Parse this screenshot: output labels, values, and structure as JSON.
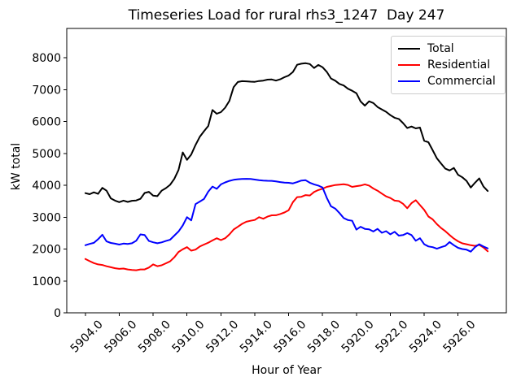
{
  "chart_data": {
    "type": "line",
    "title": "Timeseries Load for rural rhs3_1247  Day 247",
    "xlabel": "Hour of Year",
    "ylabel": "kW total",
    "grid": false,
    "legend_position": "upper right",
    "xlim": [
      5902.9,
      5928.85
    ],
    "ylim": [
      0,
      8920
    ],
    "xticks": [
      5904,
      5906,
      5908,
      5910,
      5912,
      5914,
      5916,
      5918,
      5920,
      5922,
      5924,
      5926
    ],
    "xtick_labels": [
      "5904.0",
      "5906.0",
      "5908.0",
      "5910.0",
      "5912.0",
      "5914.0",
      "5916.0",
      "5918.0",
      "5920.0",
      "5922.0",
      "5924.0",
      "5926.0"
    ],
    "yticks": [
      0,
      1000,
      2000,
      3000,
      4000,
      5000,
      6000,
      7000,
      8000
    ],
    "ytick_labels": [
      "0",
      "1000",
      "2000",
      "3000",
      "4000",
      "5000",
      "6000",
      "7000",
      "8000"
    ],
    "x": [
      5904.0,
      5904.25,
      5904.5,
      5904.75,
      5905.0,
      5905.25,
      5905.5,
      5905.75,
      5906.0,
      5906.25,
      5906.5,
      5906.75,
      5907.0,
      5907.25,
      5907.5,
      5907.75,
      5908.0,
      5908.25,
      5908.5,
      5908.75,
      5909.0,
      5909.25,
      5909.5,
      5909.75,
      5910.0,
      5910.25,
      5910.5,
      5910.75,
      5911.0,
      5911.25,
      5911.5,
      5911.75,
      5912.0,
      5912.25,
      5912.5,
      5912.75,
      5913.0,
      5913.25,
      5913.5,
      5913.75,
      5914.0,
      5914.25,
      5914.5,
      5914.75,
      5915.0,
      5915.25,
      5915.5,
      5915.75,
      5916.0,
      5916.25,
      5916.5,
      5916.75,
      5917.0,
      5917.25,
      5917.5,
      5917.75,
      5918.0,
      5918.25,
      5918.5,
      5918.75,
      5919.0,
      5919.25,
      5919.5,
      5919.75,
      5920.0,
      5920.25,
      5920.5,
      5920.75,
      5921.0,
      5921.25,
      5921.5,
      5921.75,
      5922.0,
      5922.25,
      5922.5,
      5922.75,
      5923.0,
      5923.25,
      5923.5,
      5923.75,
      5924.0,
      5924.25,
      5924.5,
      5924.75,
      5925.0,
      5925.25,
      5925.5,
      5925.75,
      5926.0,
      5926.25,
      5926.5,
      5926.75,
      5927.0,
      5927.25,
      5927.5,
      5927.75
    ],
    "series": [
      {
        "name": "Total",
        "color": "#000000",
        "values": [
          3755,
          3720,
          3780,
          3730,
          3920,
          3830,
          3590,
          3520,
          3470,
          3520,
          3480,
          3515,
          3525,
          3575,
          3760,
          3795,
          3675,
          3660,
          3830,
          3910,
          4015,
          4200,
          4480,
          5030,
          4800,
          4965,
          5265,
          5520,
          5695,
          5860,
          6360,
          6245,
          6295,
          6435,
          6650,
          7080,
          7240,
          7265,
          7260,
          7250,
          7245,
          7270,
          7285,
          7315,
          7320,
          7285,
          7325,
          7390,
          7445,
          7555,
          7780,
          7815,
          7830,
          7805,
          7680,
          7775,
          7705,
          7560,
          7350,
          7280,
          7180,
          7130,
          7030,
          6965,
          6890,
          6630,
          6500,
          6635,
          6580,
          6455,
          6380,
          6305,
          6200,
          6120,
          6080,
          5950,
          5795,
          5845,
          5785,
          5810,
          5395,
          5350,
          5100,
          4845,
          4680,
          4520,
          4465,
          4545,
          4330,
          4250,
          4140,
          3930,
          4080,
          4215,
          3960,
          3820
        ]
      },
      {
        "name": "Residential",
        "color": "#ff0000",
        "values": [
          1690,
          1620,
          1560,
          1520,
          1500,
          1460,
          1430,
          1400,
          1380,
          1388,
          1360,
          1345,
          1335,
          1360,
          1362,
          1420,
          1520,
          1462,
          1490,
          1552,
          1612,
          1740,
          1910,
          1992,
          2060,
          1950,
          1982,
          2080,
          2142,
          2200,
          2272,
          2340,
          2282,
          2340,
          2460,
          2612,
          2700,
          2790,
          2858,
          2888,
          2912,
          3000,
          2952,
          3018,
          3058,
          3062,
          3100,
          3148,
          3220,
          3470,
          3630,
          3640,
          3692,
          3680,
          3790,
          3850,
          3892,
          3950,
          3978,
          4008,
          4020,
          4032,
          4012,
          3950,
          3972,
          3990,
          4030,
          3990,
          3900,
          3830,
          3740,
          3652,
          3600,
          3520,
          3505,
          3420,
          3280,
          3440,
          3532,
          3380,
          3230,
          3020,
          2930,
          2780,
          2658,
          2560,
          2440,
          2330,
          2242,
          2180,
          2150,
          2120,
          2100,
          2130,
          2050,
          1930
        ]
      },
      {
        "name": "Commercial",
        "color": "#0000ff",
        "values": [
          2120,
          2160,
          2195,
          2310,
          2450,
          2240,
          2192,
          2170,
          2140,
          2172,
          2160,
          2182,
          2260,
          2460,
          2440,
          2252,
          2212,
          2182,
          2210,
          2252,
          2292,
          2420,
          2552,
          2740,
          3000,
          2900,
          3410,
          3490,
          3570,
          3800,
          3960,
          3890,
          4030,
          4090,
          4140,
          4172,
          4190,
          4200,
          4202,
          4200,
          4180,
          4162,
          4150,
          4142,
          4140,
          4120,
          4100,
          4082,
          4078,
          4060,
          4100,
          4150,
          4160,
          4080,
          4030,
          3990,
          3930,
          3610,
          3340,
          3270,
          3130,
          2972,
          2910,
          2888,
          2610,
          2700,
          2632,
          2620,
          2550,
          2632,
          2510,
          2562,
          2462,
          2540,
          2420,
          2440,
          2500,
          2440,
          2260,
          2340,
          2150,
          2082,
          2060,
          2012,
          2060,
          2100,
          2220,
          2120,
          2040,
          2000,
          1980,
          1920,
          2060,
          2150,
          2080,
          2020
        ]
      }
    ]
  }
}
